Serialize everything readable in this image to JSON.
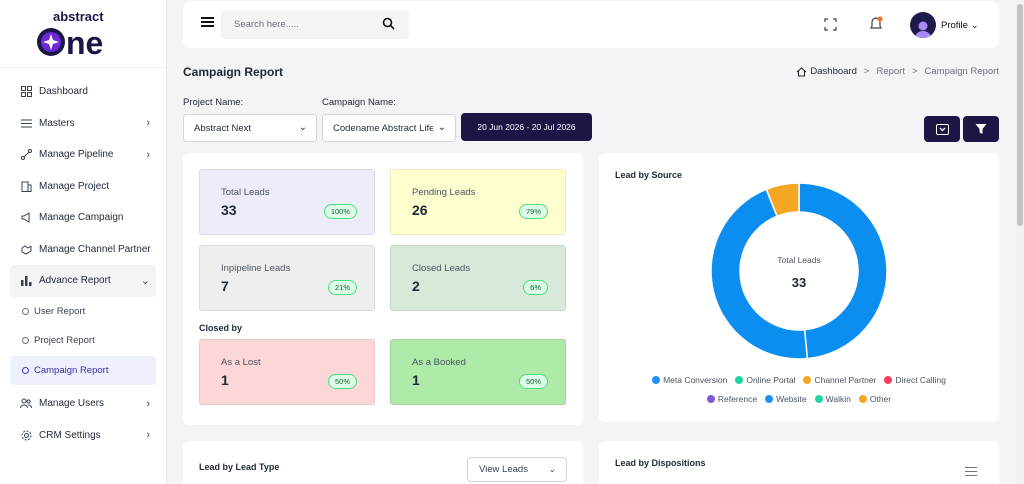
{
  "brand": {
    "logo_top": "abstract",
    "logo_main": "one",
    "primary": "#1a1744",
    "accent": "#7c3aed"
  },
  "sidebar": {
    "items": [
      {
        "label": "Dashboard",
        "icon": "grid-icon",
        "chevron": false
      },
      {
        "label": "Masters",
        "icon": "list-icon",
        "chevron": true
      },
      {
        "label": "Manage Pipeline",
        "icon": "pipeline-icon",
        "chevron": true
      },
      {
        "label": "Manage Project",
        "icon": "building-icon",
        "chevron": false
      },
      {
        "label": "Manage Campaign",
        "icon": "megaphone-icon",
        "chevron": false
      },
      {
        "label": "Manage Channel Partner",
        "icon": "handshake-icon",
        "chevron": false
      },
      {
        "label": "Advance Report",
        "icon": "bar-chart-icon",
        "chevron": true,
        "expanded": true
      }
    ],
    "sub_items": [
      {
        "label": "User Report"
      },
      {
        "label": "Project Report"
      },
      {
        "label": "Campaign Report",
        "active": true
      }
    ],
    "bottom_items": [
      {
        "label": "Manage Users",
        "icon": "users-icon"
      },
      {
        "label": "CRM Settings",
        "icon": "gear-icon"
      }
    ]
  },
  "topbar": {
    "search_placeholder": "Search here.....",
    "profile_label": "Profile"
  },
  "page": {
    "title": "Campaign Report",
    "breadcrumb": [
      "Dashboard",
      "Report",
      "Campaign Report"
    ]
  },
  "filters": {
    "project_label": "Project Name:",
    "project_value": "Abstract Next",
    "campaign_label": "Campaign Name:",
    "campaign_value": "Codename Abstract Life",
    "date_range": "20 Jun 2026 - 20 Jul 2026"
  },
  "stats": [
    {
      "label": "Total Leads",
      "value": "33",
      "pct": "100%",
      "bg": "#ececfb"
    },
    {
      "label": "Pending Leads",
      "value": "26",
      "pct": "79%",
      "bg": "#fefece"
    },
    {
      "label": "Inpipeline Leads",
      "value": "7",
      "pct": "21%",
      "bg": "#eeeeee"
    },
    {
      "label": "Closed Leads",
      "value": "2",
      "pct": "6%",
      "bg": "#d7e9d8"
    }
  ],
  "closed_by": {
    "title": "Closed by",
    "items": [
      {
        "label": "As a Lost",
        "value": "1",
        "pct": "50%",
        "bg": "#fdd7d7"
      },
      {
        "label": "As a Booked",
        "value": "1",
        "pct": "50%",
        "bg": "#aeeaa8"
      }
    ]
  },
  "chart_data": {
    "type": "pie",
    "title": "Lead by Source",
    "center_label": "Total Leads",
    "center_value": "33",
    "slices": [
      {
        "name": "Meta Conversion",
        "value": 16,
        "color": "#0b8ef0"
      },
      {
        "name": "Website",
        "value": 15,
        "color": "#0b8ef0"
      },
      {
        "name": "Channel Partner",
        "value": 2,
        "color": "#f5a623"
      }
    ],
    "legend": [
      {
        "name": "Meta Conversion",
        "color": "#1e90ff"
      },
      {
        "name": "Online Portal",
        "color": "#22d3a6"
      },
      {
        "name": "Channel Partner",
        "color": "#f5a623"
      },
      {
        "name": "Direct Calling",
        "color": "#f43f5e"
      },
      {
        "name": "Reference",
        "color": "#7c5cd6"
      },
      {
        "name": "Website",
        "color": "#1e90ff"
      },
      {
        "name": "Walkin",
        "color": "#22d3a6"
      },
      {
        "name": "Other",
        "color": "#f5a623"
      }
    ],
    "legend_position": "bottom"
  },
  "bottom": {
    "lead_type_title": "Lead by Lead Type",
    "view_leads": "View Leads",
    "dispositions_title": "Lead by Dispositions"
  }
}
